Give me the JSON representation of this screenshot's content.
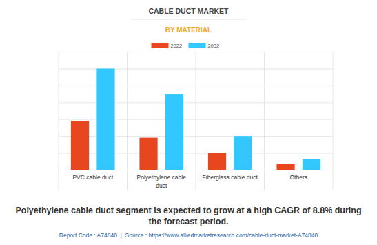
{
  "chart_data": {
    "type": "bar",
    "title": "CABLE DUCT MARKET",
    "subtitle": "BY MATERIAL",
    "categories": [
      "PVC cable duct",
      "Polyethylene cable duct",
      "Fiberglass cable duct",
      "Others"
    ],
    "series": [
      {
        "name": "2022",
        "color": "#e8461e",
        "values": [
          2.9,
          1.9,
          1.0,
          0.35
        ]
      },
      {
        "name": "2032",
        "color": "#33c7ff",
        "values": [
          6.0,
          4.5,
          2.0,
          0.65
        ]
      }
    ],
    "ylim": [
      0,
      7
    ],
    "yticks": [
      0,
      1,
      2,
      3,
      4,
      5,
      6,
      7
    ],
    "grid": true,
    "legend": "top",
    "tick_labels": "x",
    "annotations": [
      "Polyethylene cable duct segment is expected to grow at a high CAGR of 8.8% during the forecast period.",
      "Report Code : A74840  |  Source : https://www.alliedmarketresearch.com/cable-duct-market-A74840"
    ]
  }
}
